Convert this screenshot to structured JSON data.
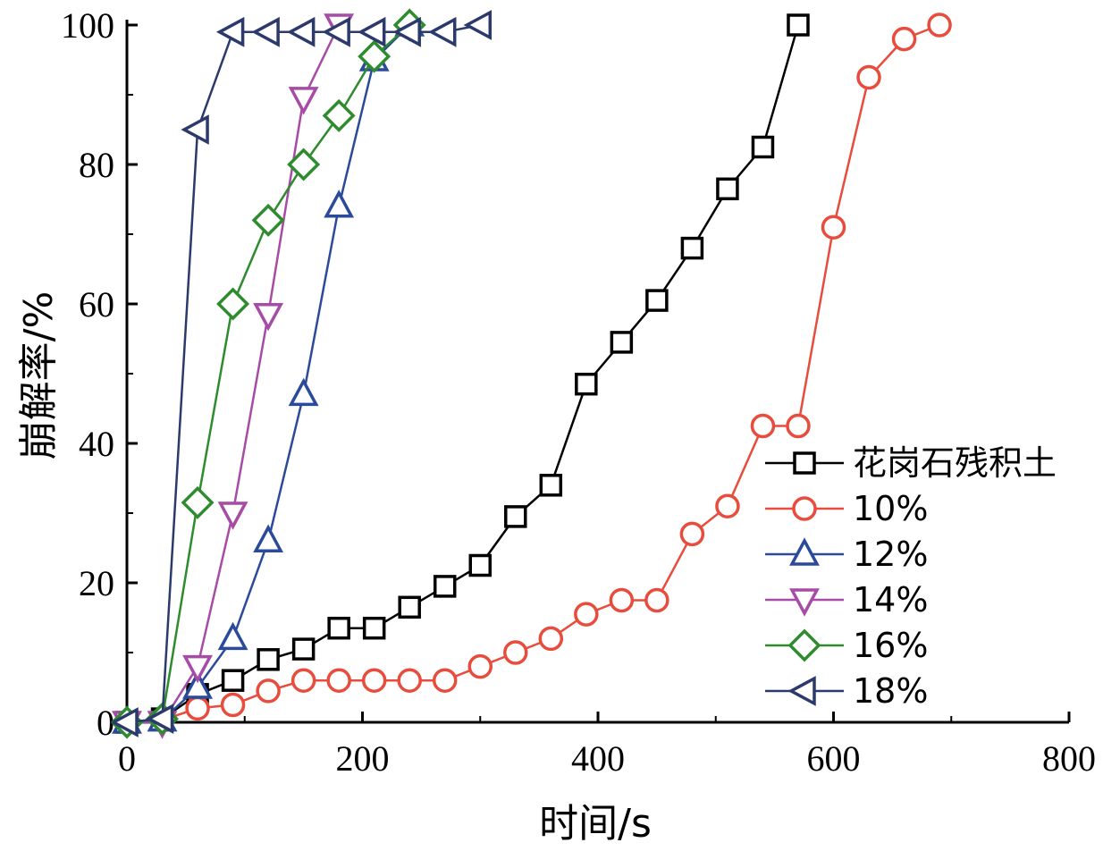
{
  "chart_data": {
    "type": "line",
    "xlabel": "时间/s",
    "ylabel": "崩解率/%",
    "xlim": [
      0,
      800
    ],
    "ylim": [
      0,
      100
    ],
    "xticks": [
      0,
      200,
      400,
      600,
      800
    ],
    "yticks": [
      0,
      20,
      40,
      60,
      80,
      100
    ],
    "grid": false,
    "legend_position": "bottom-right",
    "series": [
      {
        "name": "花岗石残积土",
        "color": "#000000",
        "marker": "square",
        "x": [
          0,
          30,
          60,
          90,
          120,
          150,
          180,
          210,
          240,
          270,
          300,
          330,
          360,
          390,
          420,
          450,
          480,
          510,
          540,
          570
        ],
        "y": [
          0,
          0.5,
          4,
          6,
          9,
          10.5,
          13.5,
          13.5,
          16.5,
          19.5,
          22.5,
          29.5,
          34,
          48.5,
          54.5,
          60.5,
          68,
          76.5,
          82.5,
          100
        ]
      },
      {
        "name": "10%",
        "color": "#e84c3d",
        "marker": "circle",
        "x": [
          0,
          30,
          60,
          90,
          120,
          150,
          180,
          210,
          240,
          270,
          300,
          330,
          360,
          390,
          420,
          450,
          480,
          510,
          540,
          570,
          600,
          630,
          660,
          690
        ],
        "y": [
          0,
          0.3,
          2,
          2.5,
          4.5,
          6,
          6,
          6,
          6,
          6,
          8,
          10,
          12,
          15.5,
          17.5,
          17.5,
          27,
          31,
          42.5,
          42.5,
          71,
          92.5,
          98,
          100
        ]
      },
      {
        "name": "12%",
        "color": "#2b4a9a",
        "marker": "triangle-up",
        "x": [
          0,
          30,
          60,
          90,
          120,
          150,
          180,
          210,
          240
        ],
        "y": [
          0,
          0.3,
          5,
          12,
          26,
          47,
          74,
          95,
          100
        ]
      },
      {
        "name": "14%",
        "color": "#a64ca6",
        "marker": "triangle-down",
        "x": [
          0,
          30,
          60,
          90,
          120,
          150,
          180
        ],
        "y": [
          0,
          0,
          8,
          30,
          58.5,
          89.5,
          100
        ]
      },
      {
        "name": "16%",
        "color": "#2e8b2e",
        "marker": "diamond",
        "x": [
          0,
          30,
          60,
          90,
          120,
          150,
          180,
          210,
          240
        ],
        "y": [
          0,
          0.5,
          31.5,
          60,
          72,
          80,
          87,
          95.5,
          100
        ]
      },
      {
        "name": "18%",
        "color": "#2b3a6b",
        "marker": "triangle-left",
        "x": [
          0,
          30,
          60,
          90,
          120,
          150,
          180,
          210,
          240,
          270,
          300
        ],
        "y": [
          0,
          0.5,
          85,
          99,
          99,
          99,
          99,
          99,
          99,
          99,
          100
        ]
      }
    ]
  }
}
